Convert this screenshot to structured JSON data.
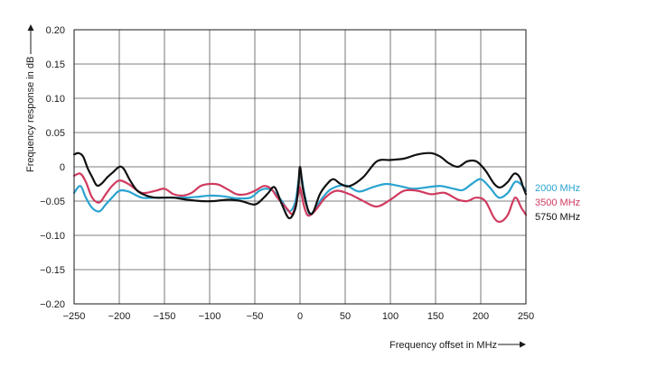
{
  "chart_data": {
    "type": "line",
    "title": "",
    "xlabel": "Frequency offset in MHz",
    "ylabel": "Frequency response in dB",
    "xlim": [
      -250,
      250
    ],
    "ylim": [
      -0.2,
      0.2
    ],
    "xticks": [
      -250,
      -200,
      -150,
      -100,
      -50,
      0,
      50,
      100,
      150,
      200,
      250
    ],
    "yticks": [
      0.2,
      0.15,
      0.1,
      0.05,
      0,
      -0.05,
      -0.1,
      -0.15,
      -0.2
    ],
    "xtick_labels": [
      "−250",
      "−200",
      "−150",
      "−100",
      "−50",
      "0",
      "50",
      "100",
      "150",
      "200",
      "250"
    ],
    "ytick_labels": [
      "0.20",
      "0.15",
      "0.10",
      "0.05",
      "0",
      "−0.05",
      "−0.10",
      "−0.15",
      "−0.20"
    ],
    "grid": true,
    "legend_position": "right",
    "series": [
      {
        "name": "2000 MHz",
        "color": "#2aa3d0",
        "x": [
          -250,
          -243,
          -237,
          -230,
          -222,
          -215,
          -208,
          -200,
          -190,
          -175,
          -160,
          -145,
          -130,
          -115,
          -100,
          -85,
          -70,
          -55,
          -45,
          -38,
          -30,
          -20,
          -12,
          -5,
          0,
          5,
          10,
          15,
          25,
          35,
          50,
          65,
          80,
          95,
          110,
          125,
          140,
          155,
          170,
          180,
          190,
          200,
          210,
          220,
          230,
          238,
          245,
          250
        ],
        "y": [
          -0.038,
          -0.028,
          -0.045,
          -0.06,
          -0.065,
          -0.055,
          -0.045,
          -0.035,
          -0.036,
          -0.045,
          -0.045,
          -0.045,
          -0.045,
          -0.044,
          -0.042,
          -0.043,
          -0.046,
          -0.045,
          -0.035,
          -0.032,
          -0.035,
          -0.05,
          -0.065,
          -0.05,
          -0.01,
          -0.04,
          -0.068,
          -0.065,
          -0.045,
          -0.032,
          -0.027,
          -0.036,
          -0.03,
          -0.025,
          -0.028,
          -0.032,
          -0.03,
          -0.028,
          -0.032,
          -0.034,
          -0.025,
          -0.018,
          -0.03,
          -0.045,
          -0.038,
          -0.022,
          -0.026,
          -0.035
        ]
      },
      {
        "name": "3500 MHz",
        "color": "#d03a5f",
        "x": [
          -250,
          -243,
          -237,
          -230,
          -222,
          -215,
          -208,
          -200,
          -190,
          -175,
          -160,
          -150,
          -140,
          -130,
          -120,
          -110,
          -100,
          -90,
          -80,
          -70,
          -60,
          -50,
          -40,
          -32,
          -25,
          -15,
          -8,
          -2,
          0,
          4,
          8,
          12,
          18,
          28,
          40,
          55,
          70,
          85,
          100,
          115,
          130,
          145,
          160,
          175,
          185,
          195,
          205,
          215,
          222,
          230,
          238,
          245,
          250
        ],
        "y": [
          -0.013,
          -0.01,
          -0.022,
          -0.045,
          -0.052,
          -0.04,
          -0.028,
          -0.02,
          -0.025,
          -0.038,
          -0.035,
          -0.032,
          -0.04,
          -0.042,
          -0.038,
          -0.028,
          -0.025,
          -0.026,
          -0.033,
          -0.04,
          -0.04,
          -0.035,
          -0.028,
          -0.032,
          -0.045,
          -0.06,
          -0.068,
          -0.04,
          -0.03,
          -0.055,
          -0.07,
          -0.07,
          -0.062,
          -0.045,
          -0.035,
          -0.04,
          -0.05,
          -0.058,
          -0.048,
          -0.035,
          -0.035,
          -0.04,
          -0.038,
          -0.048,
          -0.05,
          -0.045,
          -0.05,
          -0.075,
          -0.08,
          -0.07,
          -0.045,
          -0.06,
          -0.07
        ]
      },
      {
        "name": "5750 MHz",
        "color": "#111111",
        "x": [
          -250,
          -245,
          -240,
          -235,
          -230,
          -225,
          -220,
          -213,
          -207,
          -200,
          -195,
          -188,
          -180,
          -170,
          -160,
          -150,
          -140,
          -125,
          -110,
          -95,
          -80,
          -65,
          -50,
          -40,
          -35,
          -28,
          -20,
          -12,
          -5,
          -2,
          0,
          3,
          7,
          11,
          15,
          22,
          30,
          37,
          45,
          55,
          70,
          85,
          100,
          115,
          130,
          145,
          155,
          165,
          175,
          185,
          195,
          205,
          215,
          222,
          230,
          237,
          243,
          247,
          250
        ],
        "y": [
          0.018,
          0.02,
          0.015,
          -0.002,
          -0.015,
          -0.027,
          -0.025,
          -0.015,
          -0.008,
          0,
          -0.003,
          -0.02,
          -0.035,
          -0.042,
          -0.045,
          -0.045,
          -0.045,
          -0.048,
          -0.05,
          -0.05,
          -0.048,
          -0.05,
          -0.055,
          -0.045,
          -0.038,
          -0.03,
          -0.055,
          -0.075,
          -0.06,
          -0.03,
          0,
          -0.03,
          -0.055,
          -0.068,
          -0.065,
          -0.04,
          -0.025,
          -0.018,
          -0.025,
          -0.028,
          -0.015,
          0.008,
          0.01,
          0.012,
          0.018,
          0.02,
          0.015,
          0.005,
          0,
          0.008,
          0.008,
          -0.005,
          -0.025,
          -0.03,
          -0.022,
          -0.01,
          -0.015,
          -0.03,
          -0.04
        ]
      }
    ]
  }
}
